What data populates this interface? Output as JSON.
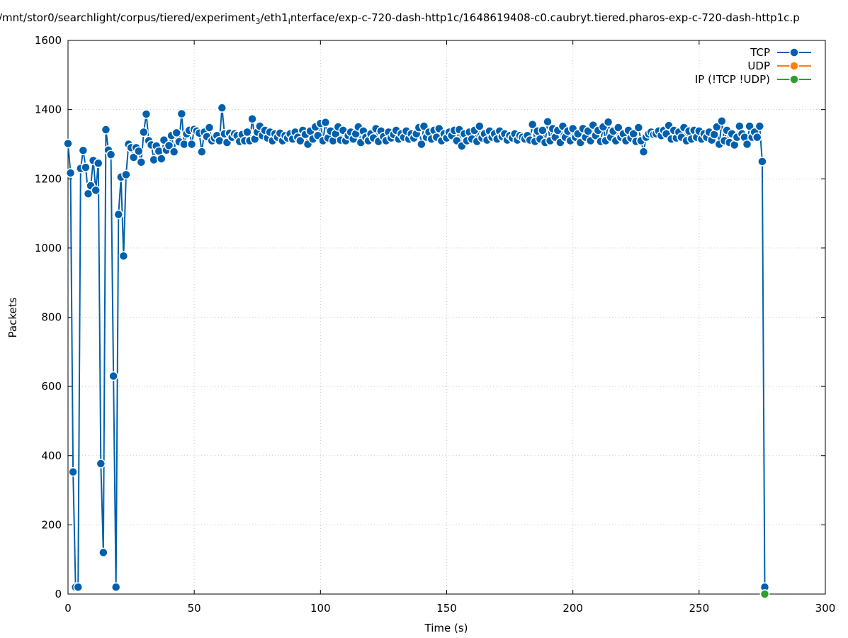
{
  "chart_data": {
    "type": "line",
    "title_parts": [
      {
        "text": "/mnt/stor0/searchlight/corpus/tiered/experiment"
      },
      {
        "text": "3",
        "sub": true
      },
      {
        "text": "/eth1"
      },
      {
        "text": "I",
        "sub": true
      },
      {
        "text": "nterface/exp-c-720-dash-http1c/1648619408-c0.caubryt.tiered.pharos-exp-c-720-dash-http1c.p"
      }
    ],
    "xlabel": "Time (s)",
    "ylabel": "Packets",
    "xlim": [
      0,
      300
    ],
    "xticks": [
      0,
      50,
      100,
      150,
      200,
      250,
      300
    ],
    "ylim": [
      0,
      1600
    ],
    "yticks": [
      0,
      200,
      400,
      600,
      800,
      1000,
      1200,
      1400,
      1600
    ],
    "grid": true,
    "legend": "top right",
    "series": [
      {
        "name": "TCP",
        "color": "#0060ad",
        "x": [
          0,
          1,
          2,
          3,
          4,
          5,
          6,
          7,
          8,
          9,
          10,
          11,
          12,
          13,
          14,
          15,
          16,
          17,
          18,
          19,
          20,
          21,
          22,
          23,
          24,
          25,
          26,
          27,
          28,
          29,
          30,
          31,
          32,
          33,
          34,
          35,
          36,
          37,
          38,
          39,
          40,
          41,
          42,
          43,
          44,
          45,
          46,
          47,
          48,
          49,
          50,
          51,
          52,
          53,
          54,
          55,
          56,
          57,
          58,
          59,
          60,
          61,
          62,
          63,
          64,
          65,
          66,
          67,
          68,
          69,
          70,
          71,
          72,
          73,
          74,
          75,
          76,
          77,
          78,
          79,
          80,
          81,
          82,
          83,
          84,
          85,
          86,
          87,
          88,
          89,
          90,
          91,
          92,
          93,
          94,
          95,
          96,
          97,
          98,
          99,
          100,
          101,
          102,
          103,
          104,
          105,
          106,
          107,
          108,
          109,
          110,
          111,
          112,
          113,
          114,
          115,
          116,
          117,
          118,
          119,
          120,
          121,
          122,
          123,
          124,
          125,
          126,
          127,
          128,
          129,
          130,
          131,
          132,
          133,
          134,
          135,
          136,
          137,
          138,
          139,
          140,
          141,
          142,
          143,
          144,
          145,
          146,
          147,
          148,
          149,
          150,
          151,
          152,
          153,
          154,
          155,
          156,
          157,
          158,
          159,
          160,
          161,
          162,
          163,
          164,
          165,
          166,
          167,
          168,
          169,
          170,
          171,
          172,
          173,
          174,
          175,
          176,
          177,
          178,
          179,
          180,
          181,
          182,
          183,
          184,
          185,
          186,
          187,
          188,
          189,
          190,
          191,
          192,
          193,
          194,
          195,
          196,
          197,
          198,
          199,
          200,
          201,
          202,
          203,
          204,
          205,
          206,
          207,
          208,
          209,
          210,
          211,
          212,
          213,
          214,
          215,
          216,
          217,
          218,
          219,
          220,
          221,
          222,
          223,
          224,
          225,
          226,
          227,
          228,
          229,
          230,
          231,
          232,
          233,
          234,
          235,
          236,
          237,
          238,
          239,
          240,
          241,
          242,
          243,
          244,
          245,
          246,
          247,
          248,
          249,
          250,
          251,
          252,
          253,
          254,
          255,
          256,
          257,
          258,
          259,
          260,
          261,
          262,
          263,
          264,
          265,
          266,
          267,
          268,
          269,
          270,
          271,
          272,
          273,
          274,
          275,
          276
        ],
        "values": [
          1302,
          1217,
          353,
          20,
          20,
          1230,
          1282,
          1233,
          1157,
          1180,
          1253,
          1167,
          1245,
          377,
          120,
          1342,
          1283,
          1270,
          630,
          20,
          1097,
          1205,
          977,
          1212,
          1300,
          1290,
          1262,
          1290,
          1280,
          1248,
          1335,
          1387,
          1310,
          1298,
          1255,
          1295,
          1280,
          1258,
          1312,
          1283,
          1296,
          1325,
          1278,
          1333,
          1307,
          1388,
          1300,
          1330,
          1340,
          1300,
          1343,
          1338,
          1332,
          1278,
          1335,
          1322,
          1348,
          1310,
          1318,
          1325,
          1310,
          1405,
          1330,
          1305,
          1332,
          1320,
          1330,
          1325,
          1308,
          1328,
          1310,
          1335,
          1310,
          1373,
          1315,
          1335,
          1352,
          1325,
          1340,
          1318,
          1335,
          1310,
          1330,
          1320,
          1332,
          1310,
          1325,
          1318,
          1330,
          1315,
          1335,
          1320,
          1310,
          1340,
          1328,
          1300,
          1338,
          1315,
          1350,
          1325,
          1360,
          1310,
          1363,
          1318,
          1338,
          1310,
          1330,
          1350,
          1312,
          1340,
          1310,
          1325,
          1335,
          1315,
          1330,
          1350,
          1305,
          1338,
          1320,
          1310,
          1330,
          1318,
          1345,
          1308,
          1338,
          1322,
          1310,
          1335,
          1318,
          1328,
          1340,
          1315,
          1330,
          1320,
          1338,
          1315,
          1330,
          1318,
          1330,
          1348,
          1300,
          1352,
          1320,
          1335,
          1315,
          1340,
          1320,
          1345,
          1310,
          1330,
          1318,
          1335,
          1325,
          1340,
          1310,
          1342,
          1295,
          1330,
          1310,
          1335,
          1315,
          1340,
          1308,
          1352,
          1318,
          1330,
          1312,
          1338,
          1320,
          1330,
          1315,
          1338,
          1322,
          1330,
          1312,
          1325,
          1318,
          1330,
          1312,
          1325,
          1320,
          1315,
          1325,
          1312,
          1357,
          1308,
          1338,
          1315,
          1340,
          1305,
          1365,
          1310,
          1345,
          1320,
          1340,
          1305,
          1352,
          1320,
          1338,
          1310,
          1345,
          1320,
          1330,
          1305,
          1345,
          1320,
          1338,
          1310,
          1355,
          1325,
          1340,
          1308,
          1350,
          1310,
          1364,
          1320,
          1338,
          1310,
          1348,
          1320,
          1330,
          1310,
          1340,
          1318,
          1330,
          1308,
          1348,
          1310,
          1278,
          1320,
          1330,
          1335,
          1328,
          1330,
          1338,
          1325,
          1340,
          1330,
          1354,
          1315,
          1340,
          1318,
          1335,
          1320,
          1348,
          1310,
          1338,
          1315,
          1340,
          1320,
          1338,
          1315,
          1330,
          1320,
          1335,
          1312,
          1328,
          1350,
          1300,
          1367,
          1310,
          1340,
          1305,
          1330,
          1298,
          1320,
          1352,
          1330,
          1320,
          1300,
          1352,
          1320,
          1335,
          1320,
          1352,
          1250,
          20
        ]
      },
      {
        "name": "UDP",
        "color": "#ff7f0e",
        "x": [
          276
        ],
        "values": [
          0
        ]
      },
      {
        "name": "IP (!TCP  !UDP)",
        "color": "#2ca02c",
        "x": [
          276
        ],
        "values": [
          0
        ]
      }
    ]
  }
}
